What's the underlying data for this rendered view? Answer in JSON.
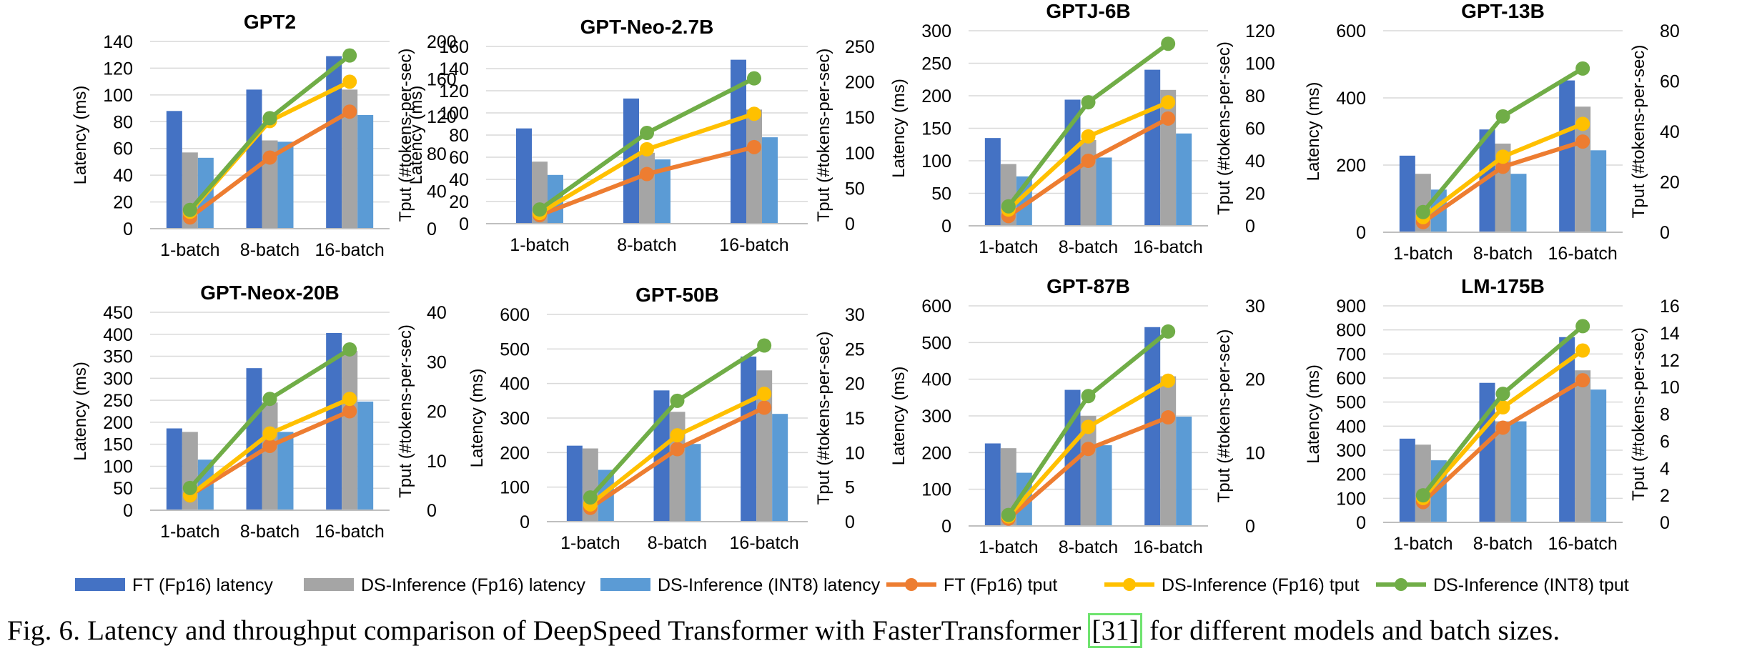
{
  "caption": {
    "prefix": "Fig. 6.  Latency and throughput comparison of DeepSpeed Transformer with FasterTransformer ",
    "ref": "[31]",
    "suffix": " for different models and batch sizes."
  },
  "legend": [
    {
      "name": "FT (Fp16) latency",
      "kind": "bar",
      "color": "#4472c4"
    },
    {
      "name": "DS-Inference (Fp16) latency",
      "kind": "bar",
      "color": "#a5a5a5"
    },
    {
      "name": "DS-Inference (INT8) latency",
      "kind": "bar",
      "color": "#5b9bd5"
    },
    {
      "name": "FT (Fp16) tput",
      "kind": "line",
      "color": "#ed7d31"
    },
    {
      "name": "DS-Inference (Fp16) tput",
      "kind": "line",
      "color": "#ffc000"
    },
    {
      "name": "DS-Inference (INT8) tput",
      "kind": "line",
      "color": "#70ad47"
    }
  ],
  "chart_data": [
    {
      "type": "bar+line",
      "title": "GPT2",
      "categories": [
        "1-batch",
        "8-batch",
        "16-batch"
      ],
      "ylabel": "Latency (ms)",
      "y2label": "Tput (#tokens-per-sec)",
      "ylim": [
        0,
        140
      ],
      "yticks": [
        0,
        20,
        40,
        60,
        80,
        100,
        120,
        140
      ],
      "y2lim": [
        0,
        200
      ],
      "y2ticks": [
        0,
        40,
        80,
        120,
        160,
        200
      ],
      "bar_series": [
        {
          "name": "FT (Fp16) latency",
          "values": [
            88,
            104,
            129
          ]
        },
        {
          "name": "DS-Inference (Fp16) latency",
          "values": [
            57,
            66,
            104
          ]
        },
        {
          "name": "DS-Inference (INT8) latency",
          "values": [
            53,
            65,
            85
          ]
        }
      ],
      "line_series": [
        {
          "name": "FT (Fp16) tput",
          "values": [
            12,
            76,
            125
          ]
        },
        {
          "name": "DS-Inference (Fp16) tput",
          "values": [
            18,
            115,
            157
          ]
        },
        {
          "name": "DS-Inference (INT8) tput",
          "values": [
            20,
            118,
            185
          ]
        }
      ]
    },
    {
      "type": "bar+line",
      "title": "GPT-Neo-2.7B",
      "categories": [
        "1-batch",
        "8-batch",
        "16-batch"
      ],
      "ylabel": "Latency (ms)",
      "y2label": "Tput (#tokens-per-sec)",
      "ylim": [
        0,
        160
      ],
      "yticks": [
        0,
        20,
        40,
        60,
        80,
        100,
        120,
        140,
        160
      ],
      "y2lim": [
        0,
        250
      ],
      "y2ticks": [
        0,
        50,
        100,
        150,
        200,
        250
      ],
      "bar_series": [
        {
          "name": "FT (Fp16) latency",
          "values": [
            86,
            113,
            148
          ]
        },
        {
          "name": "DS-Inference (Fp16) latency",
          "values": [
            56,
            64,
            103
          ]
        },
        {
          "name": "DS-Inference (INT8) latency",
          "values": [
            44,
            58,
            78
          ]
        }
      ],
      "line_series": [
        {
          "name": "FT (Fp16) tput",
          "values": [
            12,
            70,
            108
          ]
        },
        {
          "name": "DS-Inference (Fp16) tput",
          "values": [
            15,
            105,
            155
          ]
        },
        {
          "name": "DS-Inference (INT8) tput",
          "values": [
            20,
            128,
            205
          ]
        }
      ]
    },
    {
      "type": "bar+line",
      "title": "GPTJ-6B",
      "categories": [
        "1-batch",
        "8-batch",
        "16-batch"
      ],
      "ylabel": "Latency (ms)",
      "y2label": "Tput (#tokens-per-sec)",
      "ylim": [
        0,
        300
      ],
      "yticks": [
        0,
        50,
        100,
        150,
        200,
        250,
        300
      ],
      "y2lim": [
        0,
        120
      ],
      "y2ticks": [
        0,
        20,
        40,
        60,
        80,
        100,
        120
      ],
      "bar_series": [
        {
          "name": "FT (Fp16) latency",
          "values": [
            135,
            194,
            240
          ]
        },
        {
          "name": "DS-Inference (Fp16) latency",
          "values": [
            95,
            132,
            209
          ]
        },
        {
          "name": "DS-Inference (INT8) latency",
          "values": [
            76,
            105,
            142
          ]
        }
      ],
      "line_series": [
        {
          "name": "FT (Fp16) tput",
          "values": [
            6,
            40,
            66
          ]
        },
        {
          "name": "DS-Inference (Fp16) tput",
          "values": [
            10,
            55,
            76
          ]
        },
        {
          "name": "DS-Inference (INT8) tput",
          "values": [
            12,
            76,
            112
          ]
        }
      ]
    },
    {
      "type": "bar+line",
      "title": "GPT-13B",
      "categories": [
        "1-batch",
        "8-batch",
        "16-batch"
      ],
      "ylabel": "Latency (ms)",
      "y2label": "Tput (#tokens-per-sec)",
      "ylim": [
        0,
        600
      ],
      "yticks": [
        0,
        200,
        400,
        600
      ],
      "y2lim": [
        0,
        80
      ],
      "y2ticks": [
        0,
        20,
        40,
        60,
        80
      ],
      "bar_series": [
        {
          "name": "FT (Fp16) latency",
          "values": [
            228,
            306,
            452
          ]
        },
        {
          "name": "DS-Inference (Fp16) latency",
          "values": [
            174,
            264,
            374
          ]
        },
        {
          "name": "DS-Inference (INT8) latency",
          "values": [
            127,
            174,
            244
          ]
        }
      ],
      "line_series": [
        {
          "name": "FT (Fp16) tput",
          "values": [
            4,
            26,
            36
          ]
        },
        {
          "name": "DS-Inference (Fp16) tput",
          "values": [
            6,
            30,
            43
          ]
        },
        {
          "name": "DS-Inference (INT8) tput",
          "values": [
            8,
            46,
            65
          ]
        }
      ]
    },
    {
      "type": "bar+line",
      "title": "GPT-Neox-20B",
      "categories": [
        "1-batch",
        "8-batch",
        "16-batch"
      ],
      "ylabel": "Latency (ms)",
      "y2label": "Tput (#tokens-per-sec)",
      "ylim": [
        0,
        450
      ],
      "yticks": [
        0,
        50,
        100,
        150,
        200,
        250,
        300,
        350,
        400,
        450
      ],
      "y2lim": [
        0,
        40
      ],
      "y2ticks": [
        0,
        10,
        20,
        30,
        40
      ],
      "bar_series": [
        {
          "name": "FT (Fp16) latency",
          "values": [
            186,
            323,
            403
          ]
        },
        {
          "name": "DS-Inference (Fp16) latency",
          "values": [
            178,
            245,
            362
          ]
        },
        {
          "name": "DS-Inference (INT8) latency",
          "values": [
            115,
            178,
            247
          ]
        }
      ],
      "line_series": [
        {
          "name": "FT (Fp16) tput",
          "values": [
            3,
            13,
            20
          ]
        },
        {
          "name": "DS-Inference (Fp16) tput",
          "values": [
            3,
            15.5,
            22.5
          ]
        },
        {
          "name": "DS-Inference (INT8) tput",
          "values": [
            4.5,
            22.5,
            32.5
          ]
        }
      ]
    },
    {
      "type": "bar+line",
      "title": "GPT-50B",
      "categories": [
        "1-batch",
        "8-batch",
        "16-batch"
      ],
      "ylabel": "Latency (ms)",
      "y2label": "Tput (#tokens-per-sec)",
      "ylim": [
        0,
        600
      ],
      "yticks": [
        0,
        100,
        200,
        300,
        400,
        500,
        600
      ],
      "y2lim": [
        0,
        30
      ],
      "y2ticks": [
        0,
        5,
        10,
        15,
        20,
        25,
        30
      ],
      "bar_series": [
        {
          "name": "FT (Fp16) latency",
          "values": [
            220,
            380,
            478
          ]
        },
        {
          "name": "DS-Inference (Fp16) latency",
          "values": [
            212,
            318,
            438
          ]
        },
        {
          "name": "DS-Inference (INT8) latency",
          "values": [
            150,
            225,
            312
          ]
        }
      ],
      "line_series": [
        {
          "name": "FT (Fp16) tput",
          "values": [
            2,
            10.5,
            16.5
          ]
        },
        {
          "name": "DS-Inference (Fp16) tput",
          "values": [
            2.5,
            12.5,
            18.5
          ]
        },
        {
          "name": "DS-Inference (INT8) tput",
          "values": [
            3.5,
            17.5,
            25.5
          ]
        }
      ]
    },
    {
      "type": "bar+line",
      "title": "GPT-87B",
      "categories": [
        "1-batch",
        "8-batch",
        "16-batch"
      ],
      "ylabel": "Latency (ms)",
      "y2label": "Tput (#tokens-per-sec)",
      "ylim": [
        0,
        600
      ],
      "yticks": [
        0,
        100,
        200,
        300,
        400,
        500,
        600
      ],
      "y2lim": [
        0,
        30
      ],
      "y2ticks": [
        0,
        10,
        20,
        30
      ],
      "bar_series": [
        {
          "name": "FT (Fp16) latency",
          "values": [
            225,
            371,
            542
          ]
        },
        {
          "name": "DS-Inference (Fp16) latency",
          "values": [
            212,
            300,
            408
          ]
        },
        {
          "name": "DS-Inference (INT8) latency",
          "values": [
            145,
            220,
            298
          ]
        }
      ],
      "line_series": [
        {
          "name": "FT (Fp16) tput",
          "values": [
            1,
            10.5,
            14.8
          ]
        },
        {
          "name": "DS-Inference (Fp16) tput",
          "values": [
            1.3,
            13.5,
            19.8
          ]
        },
        {
          "name": "DS-Inference (INT8) tput",
          "values": [
            1.5,
            17.7,
            26.5
          ]
        }
      ]
    },
    {
      "type": "bar+line",
      "title": "LM-175B",
      "categories": [
        "1-batch",
        "8-batch",
        "16-batch"
      ],
      "ylabel": "Latency (ms)",
      "y2label": "Tput (#tokens-per-sec)",
      "ylim": [
        0,
        900
      ],
      "yticks": [
        0,
        100,
        200,
        300,
        400,
        500,
        600,
        700,
        800,
        900
      ],
      "y2lim": [
        0,
        16
      ],
      "y2ticks": [
        0,
        2,
        4,
        6,
        8,
        10,
        12,
        14,
        16
      ],
      "bar_series": [
        {
          "name": "FT (Fp16) latency",
          "values": [
            348,
            580,
            770
          ]
        },
        {
          "name": "DS-Inference (Fp16) latency",
          "values": [
            323,
            420,
            632
          ]
        },
        {
          "name": "DS-Inference (INT8) latency",
          "values": [
            258,
            420,
            552
          ]
        }
      ],
      "line_series": [
        {
          "name": "FT (Fp16) tput",
          "values": [
            1.5,
            7,
            10.5
          ]
        },
        {
          "name": "DS-Inference (Fp16) tput",
          "values": [
            1.8,
            8.5,
            12.7
          ]
        },
        {
          "name": "DS-Inference (INT8) tput",
          "values": [
            2,
            9.5,
            14.5
          ]
        }
      ]
    }
  ]
}
